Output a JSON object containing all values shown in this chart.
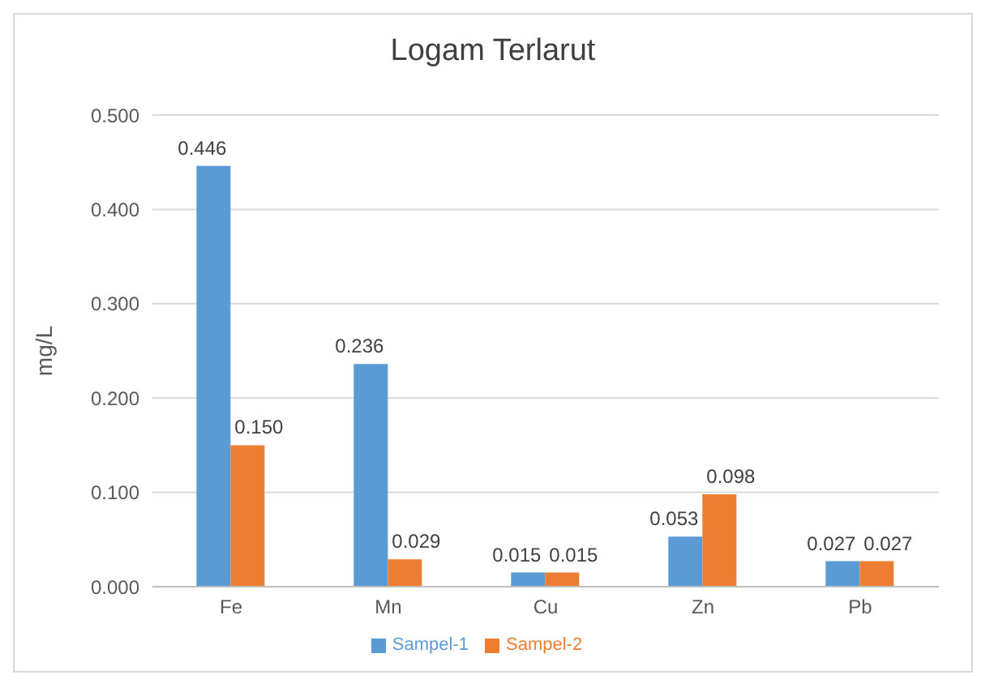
{
  "chart_data": {
    "type": "bar",
    "title": "Logam Terlarut",
    "ylabel": "mg/L",
    "categories": [
      "Fe",
      "Mn",
      "Cu",
      "Zn",
      "Pb"
    ],
    "series": [
      {
        "name": "Sampel-1",
        "color": "#5b9bd5",
        "values": [
          0.446,
          0.236,
          0.015,
          0.053,
          0.027
        ],
        "value_labels": [
          "0.446",
          "0.236",
          "0.015",
          "0.053",
          "0.027"
        ]
      },
      {
        "name": "Sampel-2",
        "color": "#ed7d31",
        "values": [
          0.15,
          0.029,
          0.015,
          0.098,
          0.027
        ],
        "value_labels": [
          "0.150",
          "0.029",
          "0.015",
          "0.098",
          "0.027"
        ]
      }
    ],
    "ylim": [
      0,
      0.5
    ],
    "yticks": [
      {
        "value": 0,
        "label": "0.000"
      },
      {
        "value": 0.1,
        "label": "0.100"
      },
      {
        "value": 0.2,
        "label": "0.200"
      },
      {
        "value": 0.3,
        "label": "0.300"
      },
      {
        "value": 0.4,
        "label": "0.400"
      },
      {
        "value": 0.5,
        "label": "0.500"
      }
    ],
    "grid": "y",
    "legend": "bottom"
  }
}
